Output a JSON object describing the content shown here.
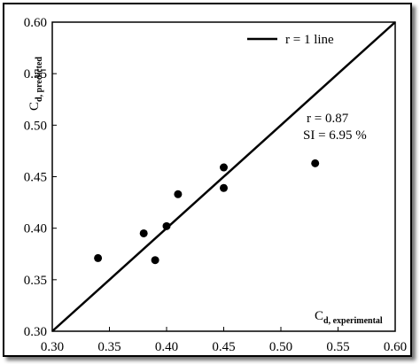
{
  "chart_data": {
    "type": "scatter",
    "xlim": [
      0.3,
      0.6
    ],
    "ylim": [
      0.3,
      0.6
    ],
    "xticks": [
      "0.30",
      "0.35",
      "0.40",
      "0.45",
      "0.50",
      "0.55",
      "0.60"
    ],
    "yticks": [
      "0.30",
      "0.35",
      "0.40",
      "0.45",
      "0.50",
      "0.55",
      "0.60"
    ],
    "xtick_values": [
      0.3,
      0.35,
      0.4,
      0.45,
      0.5,
      0.55,
      0.6
    ],
    "ytick_values": [
      0.3,
      0.35,
      0.4,
      0.45,
      0.5,
      0.55,
      0.6
    ],
    "xlabel": {
      "main": "C",
      "sub": "d, experimental"
    },
    "ylabel": {
      "main": "C",
      "sub": "d, predicted"
    },
    "grid": false,
    "legend": {
      "placement": "top-right",
      "entries": [
        {
          "label": "r = 1 line",
          "style": "line"
        }
      ]
    },
    "annotations": {
      "r": "r  = 0.87",
      "si": "SI = 6.95 %"
    },
    "reference_line": {
      "from": [
        0.3,
        0.3
      ],
      "to": [
        0.6,
        0.6
      ]
    },
    "points": [
      {
        "x": 0.34,
        "y": 0.371
      },
      {
        "x": 0.38,
        "y": 0.395
      },
      {
        "x": 0.39,
        "y": 0.369
      },
      {
        "x": 0.4,
        "y": 0.402
      },
      {
        "x": 0.41,
        "y": 0.433
      },
      {
        "x": 0.45,
        "y": 0.459
      },
      {
        "x": 0.45,
        "y": 0.439
      },
      {
        "x": 0.53,
        "y": 0.463
      }
    ],
    "colors": {
      "marker": "#000000",
      "line": "#000000"
    }
  }
}
